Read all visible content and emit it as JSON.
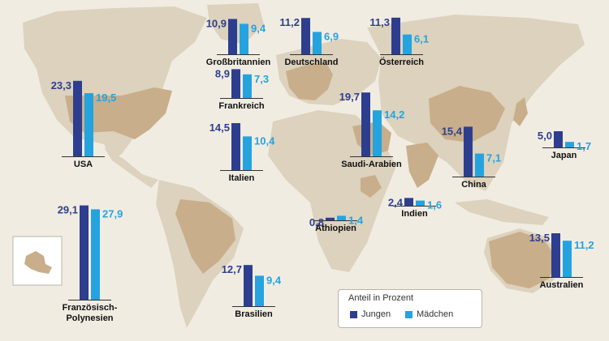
{
  "colors": {
    "jungen": "#2d3e8f",
    "maedchen": "#25a3df",
    "land": "#dcd2bd",
    "highlight": "#c8ae8a",
    "ocean": "#f1ece2"
  },
  "legend": {
    "title": "Anteil in Prozent",
    "jungen": "Jungen",
    "maedchen": "Mädchen"
  },
  "chart_data": {
    "type": "bar",
    "value_format": "comma-decimal",
    "series": [
      {
        "name": "Jungen",
        "color": "#2d3e8f"
      },
      {
        "name": "Mädchen",
        "color": "#25a3df"
      }
    ],
    "countries": [
      {
        "name": "Großbritannien",
        "jungen": 10.9,
        "maedchen": 9.4
      },
      {
        "name": "Deutschland",
        "jungen": 11.2,
        "maedchen": 6.9
      },
      {
        "name": "Österreich",
        "jungen": 11.3,
        "maedchen": 6.1
      },
      {
        "name": "USA",
        "jungen": 23.3,
        "maedchen": 19.5
      },
      {
        "name": "Frankreich",
        "jungen": 8.9,
        "maedchen": 7.3
      },
      {
        "name": "Saudi-Arabien",
        "jungen": 19.7,
        "maedchen": 14.2
      },
      {
        "name": "Italien",
        "jungen": 14.5,
        "maedchen": 10.4
      },
      {
        "name": "China",
        "jungen": 15.4,
        "maedchen": 7.1
      },
      {
        "name": "Japan",
        "jungen": 5.0,
        "maedchen": 1.7
      },
      {
        "name": "Indien",
        "jungen": 2.4,
        "maedchen": 1.6
      },
      {
        "name": "Äthiopien",
        "jungen": 0.8,
        "maedchen": 1.4
      },
      {
        "name": "Französisch-\nPolynesien",
        "jungen": 29.1,
        "maedchen": 27.9
      },
      {
        "name": "Brasilien",
        "jungen": 12.7,
        "maedchen": 9.4
      },
      {
        "name": "Australien",
        "jungen": 13.5,
        "maedchen": 11.2
      }
    ]
  }
}
